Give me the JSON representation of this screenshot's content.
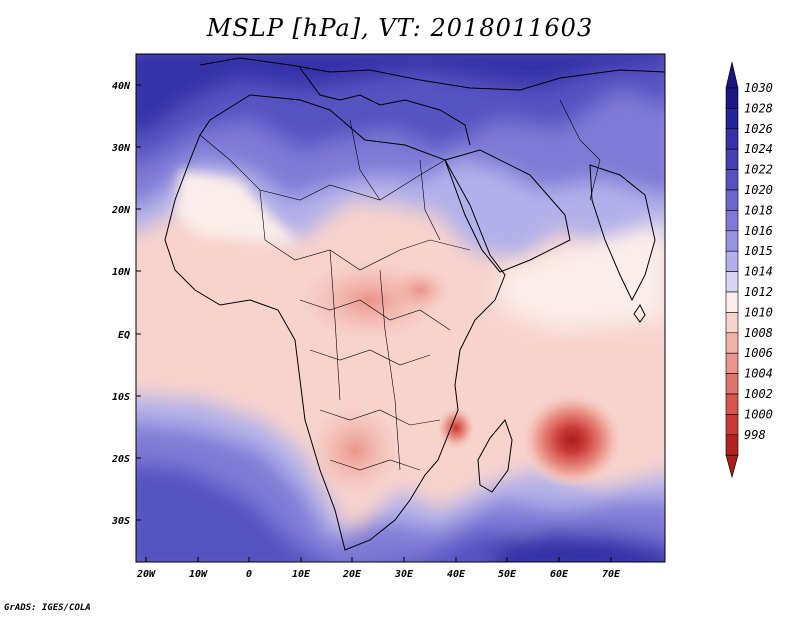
{
  "title": "MSLP [hPa], VT: 2018011603",
  "footer": "GrADS: IGES/COLA",
  "lat_ticks": [
    "40N",
    "30N",
    "20N",
    "10N",
    "EQ",
    "10S",
    "20S",
    "30S"
  ],
  "lon_ticks": [
    "20W",
    "10W",
    "0",
    "10E",
    "20E",
    "30E",
    "40E",
    "50E",
    "60E",
    "70E"
  ],
  "colorbar": {
    "labels": [
      "1030",
      "1028",
      "1026",
      "1024",
      "1022",
      "1020",
      "1018",
      "1016",
      "1015",
      "1014",
      "1012",
      "1010",
      "1008",
      "1006",
      "1004",
      "1002",
      "1000",
      "998"
    ],
    "colors": [
      "#1c1787",
      "#27239a",
      "#3631a8",
      "#4642b6",
      "#5752c2",
      "#6a66cc",
      "#7e7ad6",
      "#9693e0",
      "#b2b0ea",
      "#d7d6f6",
      "#fbeeea",
      "#f7d3cc",
      "#f2b4a9",
      "#ea948a",
      "#e1746a",
      "#d8554b",
      "#c93a33",
      "#b32323"
    ],
    "top_arrow_color": "#1a1580",
    "bottom_arrow_color": "#a81e1e"
  }
}
